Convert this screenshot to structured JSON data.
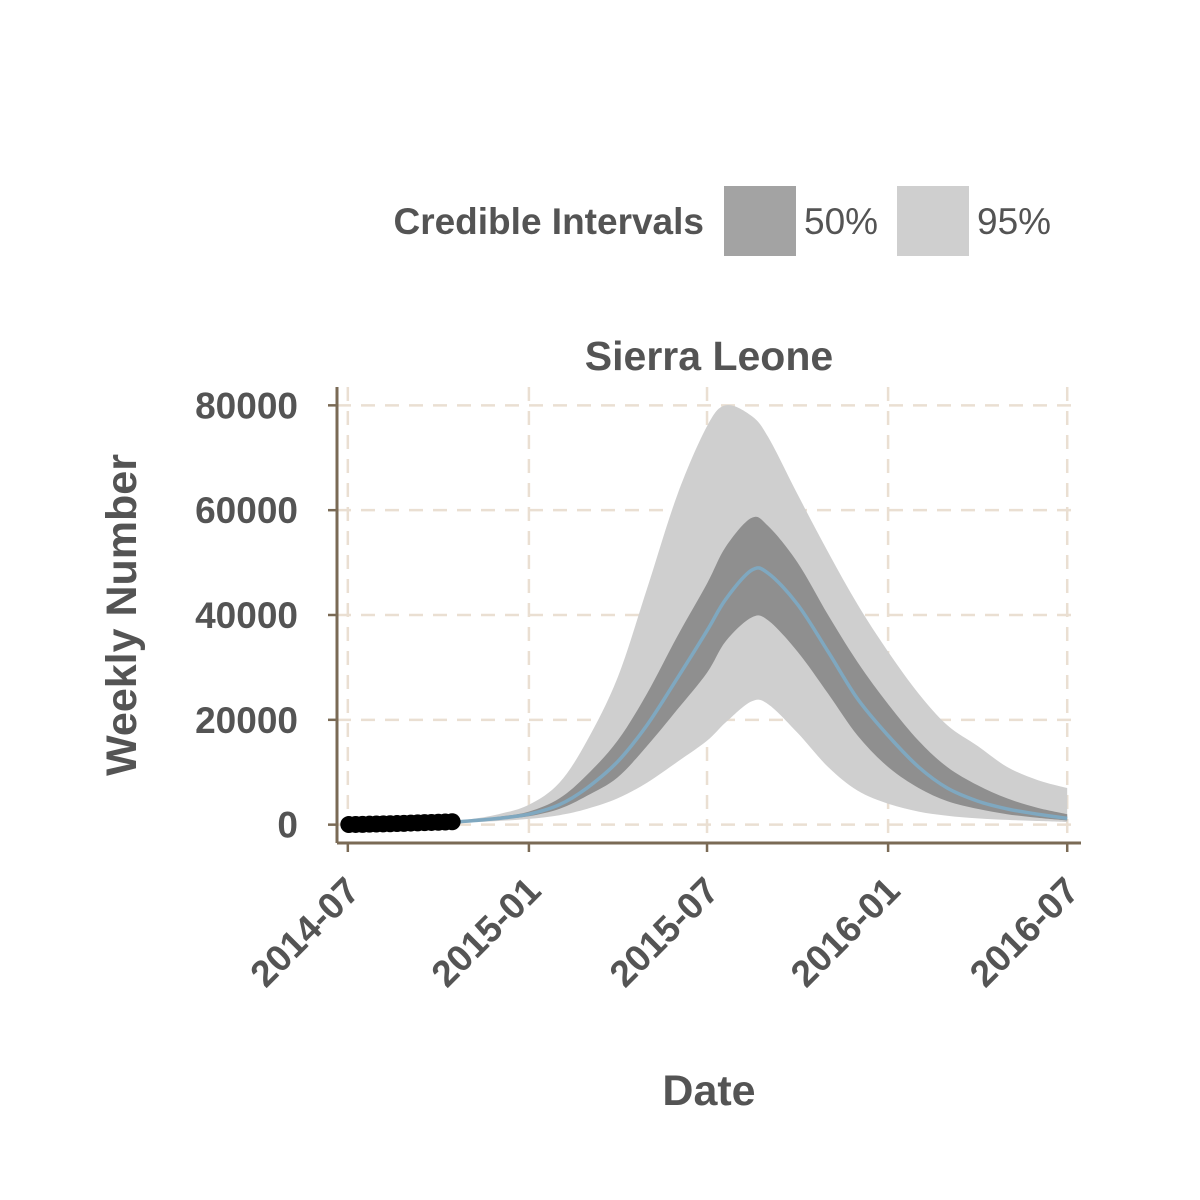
{
  "chart_data": {
    "type": "area",
    "title": "Sierra Leone",
    "xlabel": "Date",
    "ylabel": "Weekly Number",
    "x_axis_type": "date",
    "xlim": [
      "2014-06-20",
      "2016-07-15"
    ],
    "ylim": [
      -3500,
      83500
    ],
    "x_ticks": [
      "2014-07",
      "2015-01",
      "2015-07",
      "2016-01",
      "2016-07"
    ],
    "x_tick_dates": [
      "2014-07-01",
      "2015-01-01",
      "2015-07-01",
      "2016-01-01",
      "2016-07-01"
    ],
    "y_ticks": [
      0,
      20000,
      40000,
      60000,
      80000
    ],
    "y_tick_labels": [
      "0",
      "20000",
      "40000",
      "60000",
      "80000"
    ],
    "grid": true,
    "legend": {
      "title": "Credible Intervals",
      "position": "top-right",
      "items": [
        {
          "label": "50%",
          "color": "#a3a3a3"
        },
        {
          "label": "95%",
          "color": "#cfcfcf"
        }
      ]
    },
    "colors": {
      "band95": "#cfcfcf",
      "band50": "#8f8f8f",
      "median": "#7fa8c0",
      "points": "#000000",
      "axis": "#7a6a55",
      "grid": "#eadfd2",
      "text": "#545454"
    },
    "observed": {
      "dates": [
        "2014-07-02",
        "2014-07-09",
        "2014-07-16",
        "2014-07-23",
        "2014-07-30",
        "2014-08-06",
        "2014-08-13",
        "2014-08-20",
        "2014-08-27",
        "2014-09-03",
        "2014-09-10",
        "2014-09-17",
        "2014-09-24",
        "2014-10-01",
        "2014-10-08",
        "2014-10-15"
      ],
      "values": [
        20,
        40,
        60,
        90,
        120,
        150,
        180,
        210,
        250,
        300,
        340,
        380,
        420,
        460,
        500,
        550
      ]
    },
    "forecast": {
      "dates": [
        "2014-10-01",
        "2014-11-01",
        "2014-12-01",
        "2015-01-01",
        "2015-02-01",
        "2015-03-01",
        "2015-04-01",
        "2015-05-01",
        "2015-06-01",
        "2015-07-01",
        "2015-07-20",
        "2015-08-15",
        "2015-09-01",
        "2015-10-01",
        "2015-11-01",
        "2015-12-01",
        "2016-01-01",
        "2016-02-01",
        "2016-03-01",
        "2016-04-01",
        "2016-05-01",
        "2016-06-01",
        "2016-07-01"
      ],
      "median": [
        300,
        700,
        1200,
        2000,
        3800,
        7000,
        12000,
        19000,
        28000,
        37000,
        43000,
        48500,
        48000,
        42000,
        33000,
        24000,
        17000,
        11000,
        7000,
        4500,
        3000,
        2000,
        1200
      ],
      "lower50": [
        280,
        600,
        1000,
        1600,
        3000,
        5500,
        9000,
        15000,
        22000,
        29000,
        35000,
        39500,
        39000,
        33000,
        25000,
        17000,
        11000,
        7000,
        4500,
        3000,
        2000,
        1300,
        800
      ],
      "upper50": [
        320,
        800,
        1500,
        2500,
        5000,
        9500,
        16000,
        25000,
        36000,
        46000,
        53000,
        58500,
        57000,
        50000,
        40000,
        31000,
        23000,
        16000,
        11000,
        7500,
        5000,
        3200,
        2000
      ],
      "lower95": [
        250,
        450,
        700,
        1100,
        1800,
        3000,
        5000,
        8000,
        12000,
        16000,
        19500,
        23500,
        23000,
        17500,
        11000,
        6500,
        4000,
        2500,
        1700,
        1200,
        900,
        700,
        500
      ],
      "upper95": [
        350,
        1000,
        2000,
        3800,
        8000,
        16000,
        28000,
        45000,
        63000,
        76000,
        80000,
        78000,
        74000,
        63000,
        52000,
        42000,
        33000,
        25000,
        19000,
        15000,
        11000,
        8500,
        7000
      ]
    }
  }
}
